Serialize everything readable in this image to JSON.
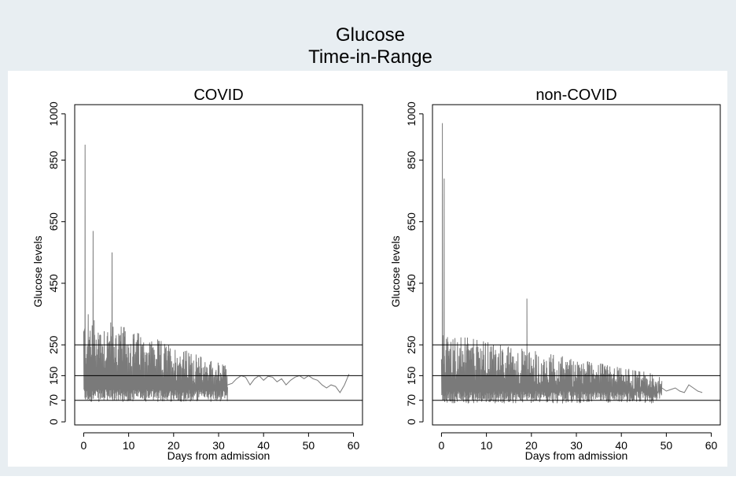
{
  "title_line1": "Glucose",
  "title_line2": "Time-in-Range",
  "colors": {
    "background_band": "#e8eef2",
    "plot_bg": "#ffffff",
    "series": "#7a7a7a",
    "reference_lines": "#000000"
  },
  "chart_data": [
    {
      "type": "line",
      "title": "COVID",
      "xlabel": "Days from admission",
      "ylabel": "Glucose levels",
      "xlim": [
        -2,
        62
      ],
      "ylim": [
        -10,
        1030
      ],
      "xticks": [
        0,
        10,
        20,
        30,
        40,
        50,
        60
      ],
      "yticks": [
        0,
        70,
        150,
        250,
        450,
        650,
        850,
        1000
      ],
      "reference_lines": [
        70,
        150,
        250
      ],
      "dense_segment": {
        "x_start": 0,
        "x_end": 32,
        "y_min": 65,
        "y_max": 360,
        "noted_peaks": [
          [
            0.3,
            900
          ],
          [
            2.1,
            620
          ],
          [
            6.3,
            550
          ]
        ]
      },
      "series": [
        {
          "x": [
            32,
            33,
            34,
            35,
            36,
            37,
            38,
            39,
            40,
            41,
            42,
            43,
            44,
            45,
            46,
            47,
            48,
            49,
            50,
            51,
            52,
            53,
            54,
            55,
            56,
            57,
            58,
            59
          ],
          "y": [
            120,
            125,
            140,
            150,
            145,
            120,
            140,
            150,
            135,
            148,
            145,
            130,
            140,
            120,
            135,
            145,
            150,
            140,
            150,
            140,
            135,
            120,
            110,
            120,
            115,
            95,
            120,
            155
          ]
        }
      ]
    },
    {
      "type": "line",
      "title": "non-COVID",
      "xlabel": "Days from admission",
      "ylabel": "Glucose levels",
      "xlim": [
        -2,
        62
      ],
      "ylim": [
        -10,
        1030
      ],
      "xticks": [
        0,
        10,
        20,
        30,
        40,
        50,
        60
      ],
      "yticks": [
        0,
        70,
        150,
        250,
        450,
        650,
        850,
        1000
      ],
      "reference_lines": [
        70,
        150,
        250
      ],
      "dense_segment": {
        "x_start": 0,
        "x_end": 49,
        "y_min": 60,
        "y_max": 290,
        "noted_peaks": [
          [
            0.2,
            970
          ],
          [
            0.6,
            790
          ],
          [
            19,
            400
          ]
        ]
      },
      "series": [
        {
          "x": [
            49,
            50,
            51,
            52,
            53,
            54,
            55,
            56,
            57,
            58
          ],
          "y": [
            110,
            100,
            105,
            110,
            100,
            95,
            120,
            110,
            100,
            95
          ]
        }
      ]
    }
  ]
}
